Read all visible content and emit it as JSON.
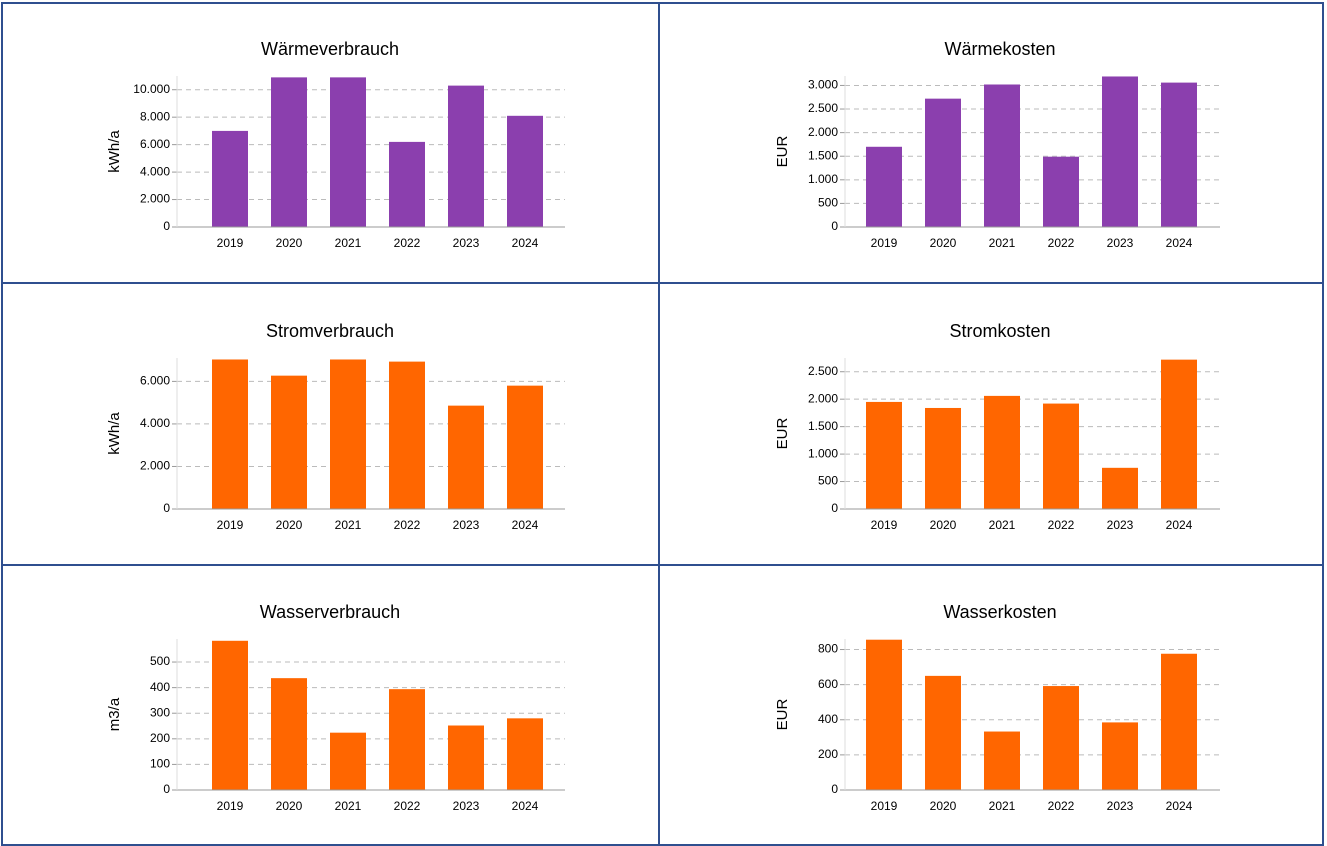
{
  "chart_data": [
    {
      "type": "bar",
      "title": "Wärmeverbrauch",
      "y_label": "kWh/a",
      "categories": [
        "2019",
        "2020",
        "2021",
        "2022",
        "2023",
        "2024"
      ],
      "values": [
        7000,
        10900,
        10900,
        6200,
        10300,
        8100
      ],
      "color": "#8b3fae",
      "ylim": [
        0,
        11000
      ],
      "yticks": [
        0,
        {
          "value": 2000,
          "label": "2.000"
        },
        {
          "value": 4000,
          "label": "4.000"
        },
        {
          "value": 6000,
          "label": "6.000"
        },
        {
          "value": 8000,
          "label": "8.000"
        },
        {
          "value": 10000,
          "label": "10.000"
        }
      ],
      "grid": true
    },
    {
      "type": "bar",
      "title": "Wärmekosten",
      "y_label": "EUR",
      "categories": [
        "2019",
        "2020",
        "2021",
        "2022",
        "2023",
        "2024"
      ],
      "values": [
        1700,
        2720,
        3020,
        1490,
        3190,
        3060
      ],
      "color": "#8b3fae",
      "ylim": [
        0,
        3200
      ],
      "yticks": [
        0,
        500,
        {
          "value": 1000,
          "label": "1.000"
        },
        {
          "value": 1500,
          "label": "1.500"
        },
        {
          "value": 2000,
          "label": "2.000"
        },
        {
          "value": 2500,
          "label": "2.500"
        },
        {
          "value": 3000,
          "label": "3.000"
        }
      ],
      "grid": true
    },
    {
      "type": "bar",
      "title": "Stromverbrauch",
      "y_label": "kWh/a",
      "categories": [
        "2019",
        "2020",
        "2021",
        "2022",
        "2023",
        "2024"
      ],
      "values": [
        7030,
        6270,
        7030,
        6930,
        4860,
        5800
      ],
      "color": "#ff6600",
      "ylim": [
        0,
        7100
      ],
      "yticks": [
        0,
        {
          "value": 2000,
          "label": "2.000"
        },
        {
          "value": 4000,
          "label": "4.000"
        },
        {
          "value": 6000,
          "label": "6.000"
        }
      ],
      "grid": true
    },
    {
      "type": "bar",
      "title": "Stromkosten",
      "y_label": "EUR",
      "categories": [
        "2019",
        "2020",
        "2021",
        "2022",
        "2023",
        "2024"
      ],
      "values": [
        1950,
        1840,
        2060,
        1920,
        750,
        2720
      ],
      "color": "#ff6600",
      "ylim": [
        0,
        2750
      ],
      "yticks": [
        0,
        500,
        {
          "value": 1000,
          "label": "1.000"
        },
        {
          "value": 1500,
          "label": "1.500"
        },
        {
          "value": 2000,
          "label": "2.000"
        },
        {
          "value": 2500,
          "label": "2.500"
        }
      ],
      "grid": true
    },
    {
      "type": "bar",
      "title": "Wasserverbrauch",
      "y_label": "m3/a",
      "categories": [
        "2019",
        "2020",
        "2021",
        "2022",
        "2023",
        "2024"
      ],
      "values": [
        583,
        437,
        224,
        394,
        252,
        280
      ],
      "color": "#ff6600",
      "ylim": [
        0,
        590
      ],
      "yticks": [
        0,
        100,
        200,
        300,
        400,
        500
      ],
      "grid": true
    },
    {
      "type": "bar",
      "title": "Wasserkosten",
      "y_label": "EUR",
      "categories": [
        "2019",
        "2020",
        "2021",
        "2022",
        "2023",
        "2024"
      ],
      "values": [
        856,
        650,
        333,
        592,
        385,
        776
      ],
      "color": "#ff6600",
      "ylim": [
        0,
        860
      ],
      "yticks": [
        0,
        200,
        400,
        600,
        800
      ],
      "grid": true
    }
  ]
}
